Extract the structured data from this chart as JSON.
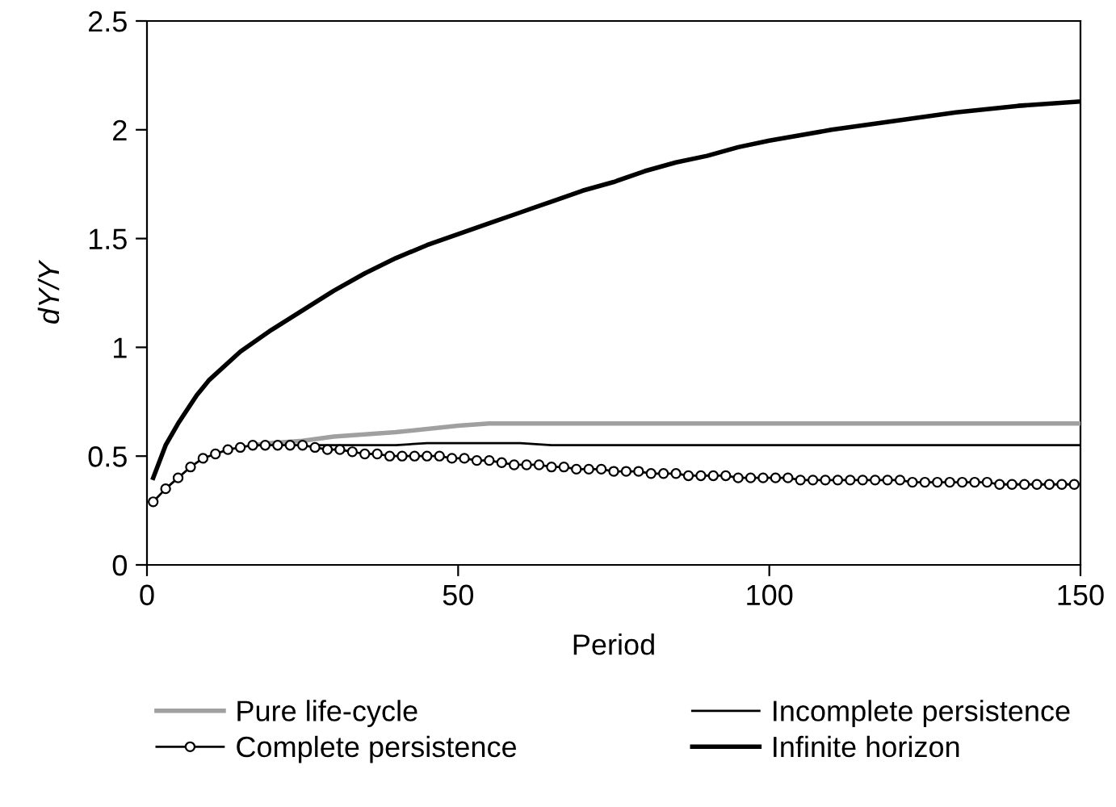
{
  "chart_data": {
    "type": "line",
    "xlabel": "Period",
    "ylabel": "dY/Y",
    "xlim": [
      0,
      150
    ],
    "xticks": [
      0,
      50,
      100,
      150
    ],
    "ylim": [
      0,
      2.5
    ],
    "yticks": [
      0,
      0.5,
      1,
      1.5,
      2,
      2.5
    ],
    "grid": false,
    "legend": "bottom",
    "series": [
      {
        "name": "Pure life-cycle",
        "color": "#a0a0a0",
        "marker": "none",
        "x": [
          17,
          20,
          25,
          30,
          40,
          50,
          55,
          150
        ],
        "values": [
          0.55,
          0.56,
          0.57,
          0.59,
          0.61,
          0.64,
          0.65,
          0.65
        ]
      },
      {
        "name": "Incomplete persistence",
        "color": "#000000",
        "marker": "none",
        "x": [
          27,
          30,
          40,
          45,
          60,
          65,
          150
        ],
        "values": [
          0.55,
          0.55,
          0.55,
          0.56,
          0.56,
          0.55,
          0.55
        ]
      },
      {
        "name": "Complete persistence",
        "color": "#000000",
        "marker": "circle",
        "x": [
          1,
          3,
          5,
          7,
          9,
          11,
          13,
          15,
          17,
          19,
          21,
          23,
          25,
          27,
          29,
          31,
          33,
          35,
          37,
          39,
          41,
          43,
          45,
          47,
          49,
          51,
          53,
          55,
          57,
          59,
          61,
          63,
          65,
          67,
          69,
          71,
          73,
          75,
          77,
          79,
          81,
          83,
          85,
          87,
          89,
          91,
          93,
          95,
          97,
          99,
          101,
          103,
          105,
          107,
          109,
          111,
          113,
          115,
          117,
          119,
          121,
          123,
          125,
          127,
          129,
          131,
          133,
          135,
          137,
          139,
          141,
          143,
          145,
          147,
          149
        ],
        "values": [
          0.29,
          0.35,
          0.4,
          0.45,
          0.49,
          0.51,
          0.53,
          0.54,
          0.55,
          0.55,
          0.55,
          0.55,
          0.55,
          0.54,
          0.53,
          0.53,
          0.52,
          0.51,
          0.51,
          0.5,
          0.5,
          0.5,
          0.5,
          0.5,
          0.49,
          0.49,
          0.48,
          0.48,
          0.47,
          0.46,
          0.46,
          0.46,
          0.45,
          0.45,
          0.44,
          0.44,
          0.44,
          0.43,
          0.43,
          0.43,
          0.42,
          0.42,
          0.42,
          0.41,
          0.41,
          0.41,
          0.41,
          0.4,
          0.4,
          0.4,
          0.4,
          0.4,
          0.39,
          0.39,
          0.39,
          0.39,
          0.39,
          0.39,
          0.39,
          0.39,
          0.39,
          0.38,
          0.38,
          0.38,
          0.38,
          0.38,
          0.38,
          0.38,
          0.37,
          0.37,
          0.37,
          0.37,
          0.37,
          0.37,
          0.37
        ]
      },
      {
        "name": "Infinite horizon",
        "color": "#000000",
        "marker": "none",
        "x": [
          1,
          3,
          5,
          8,
          10,
          15,
          20,
          25,
          30,
          35,
          40,
          45,
          50,
          55,
          60,
          65,
          70,
          75,
          80,
          85,
          90,
          95,
          100,
          110,
          120,
          130,
          140,
          150
        ],
        "values": [
          0.4,
          0.55,
          0.65,
          0.78,
          0.85,
          0.98,
          1.08,
          1.17,
          1.26,
          1.34,
          1.41,
          1.47,
          1.52,
          1.57,
          1.62,
          1.67,
          1.72,
          1.76,
          1.81,
          1.85,
          1.88,
          1.92,
          1.95,
          2.0,
          2.04,
          2.08,
          2.11,
          2.13
        ]
      }
    ]
  }
}
